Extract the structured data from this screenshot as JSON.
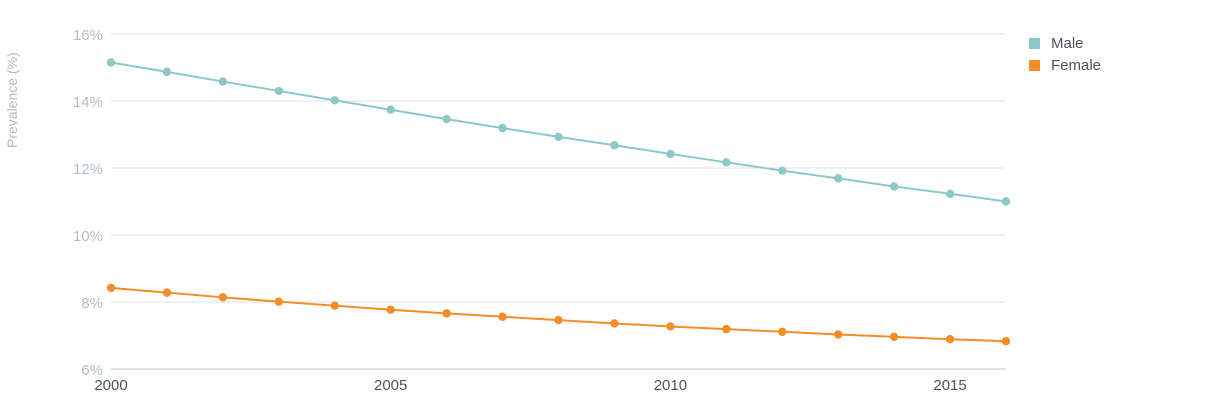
{
  "chart_data": {
    "type": "line",
    "ylabel": "Prevalence (%)",
    "xlabel": "",
    "title": "",
    "x": [
      2000,
      2001,
      2002,
      2003,
      2004,
      2005,
      2006,
      2007,
      2008,
      2009,
      2010,
      2011,
      2012,
      2013,
      2014,
      2015,
      2016
    ],
    "xlim": [
      2000,
      2016
    ],
    "ylim": [
      6,
      16
    ],
    "x_ticks": [
      2000,
      2005,
      2010,
      2015
    ],
    "x_tick_labels": [
      "2000",
      "2005",
      "2010",
      "2015"
    ],
    "y_ticks": [
      6,
      8,
      10,
      12,
      14,
      16
    ],
    "y_tick_labels": [
      "6%",
      "8%",
      "10%",
      "12%",
      "14%",
      "16%"
    ],
    "grid": true,
    "legend_position": "top-right",
    "series": [
      {
        "name": "Male",
        "color": "#8cc8c8",
        "values": [
          15.15,
          14.87,
          14.58,
          14.3,
          14.02,
          13.74,
          13.46,
          13.19,
          12.93,
          12.68,
          12.42,
          12.17,
          11.92,
          11.69,
          11.45,
          11.23,
          11.0
        ]
      },
      {
        "name": "Female",
        "color": "#f28d28",
        "values": [
          8.42,
          8.28,
          8.14,
          8.01,
          7.89,
          7.77,
          7.66,
          7.56,
          7.46,
          7.36,
          7.27,
          7.19,
          7.11,
          7.03,
          6.96,
          6.89,
          6.83
        ]
      }
    ]
  }
}
